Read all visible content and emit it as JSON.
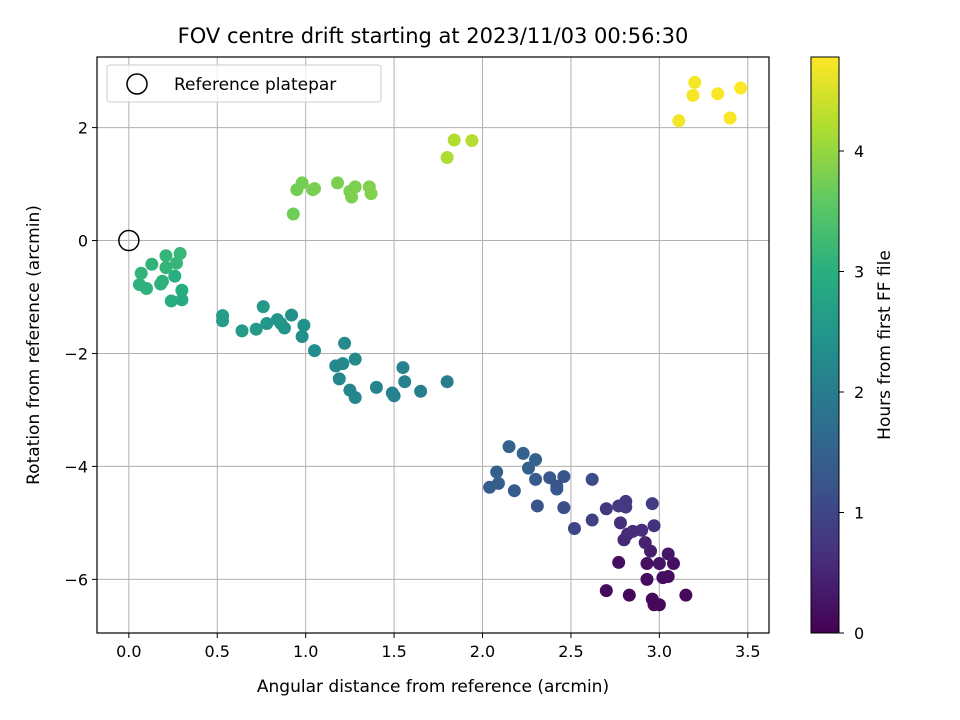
{
  "chart_data": {
    "type": "scatter",
    "title": "FOV centre drift starting at 2023/11/03 00:56:30",
    "xlabel": "Angular distance from reference (arcmin)",
    "ylabel": "Rotation from reference (arcmin)",
    "xlim": [
      -0.18,
      3.62
    ],
    "ylim": [
      -6.95,
      3.25
    ],
    "xticks": [
      0.0,
      0.5,
      1.0,
      1.5,
      2.0,
      2.5,
      3.0,
      3.5
    ],
    "xtick_labels": [
      "0.0",
      "0.5",
      "1.0",
      "1.5",
      "2.0",
      "2.5",
      "3.0",
      "3.5"
    ],
    "yticks": [
      -6,
      -4,
      -2,
      0,
      2
    ],
    "ytick_labels": [
      "−6",
      "−4",
      "−2",
      "0",
      "2"
    ],
    "grid": true,
    "legend": {
      "placement": "top-left",
      "entries": [
        "Reference platepar"
      ]
    },
    "reference_point": {
      "x": 0.0,
      "y": 0.0
    },
    "colorbar": {
      "label": "Hours from first FF file",
      "colormap": "viridis",
      "range": [
        0,
        4.78
      ],
      "ticks": [
        0,
        1,
        2,
        3,
        4
      ],
      "tick_labels": [
        "0",
        "1",
        "2",
        "3",
        "4"
      ]
    },
    "points": [
      {
        "x": 2.7,
        "y": -6.2,
        "c": 0.15
      },
      {
        "x": 2.83,
        "y": -6.28,
        "c": 0.12
      },
      {
        "x": 2.96,
        "y": -6.35,
        "c": 0.12
      },
      {
        "x": 2.97,
        "y": -6.45,
        "c": 0.1
      },
      {
        "x": 3.0,
        "y": -6.45,
        "c": 0.1
      },
      {
        "x": 3.15,
        "y": -6.28,
        "c": 0.12
      },
      {
        "x": 2.77,
        "y": -5.7,
        "c": 0.2
      },
      {
        "x": 2.93,
        "y": -5.72,
        "c": 0.2
      },
      {
        "x": 3.08,
        "y": -5.72,
        "c": 0.2
      },
      {
        "x": 3.02,
        "y": -5.97,
        "c": 0.18
      },
      {
        "x": 3.05,
        "y": -5.95,
        "c": 0.18
      },
      {
        "x": 2.93,
        "y": -6.0,
        "c": 0.18
      },
      {
        "x": 3.0,
        "y": -5.72,
        "c": 0.25
      },
      {
        "x": 3.05,
        "y": -5.55,
        "c": 0.3
      },
      {
        "x": 2.95,
        "y": -5.5,
        "c": 0.4
      },
      {
        "x": 2.92,
        "y": -5.35,
        "c": 0.45
      },
      {
        "x": 2.8,
        "y": -5.3,
        "c": 0.5
      },
      {
        "x": 2.82,
        "y": -5.2,
        "c": 0.55
      },
      {
        "x": 2.85,
        "y": -5.15,
        "c": 0.58
      },
      {
        "x": 2.9,
        "y": -5.13,
        "c": 0.6
      },
      {
        "x": 2.78,
        "y": -5.0,
        "c": 0.65
      },
      {
        "x": 2.97,
        "y": -5.05,
        "c": 0.68
      },
      {
        "x": 2.7,
        "y": -4.75,
        "c": 0.75
      },
      {
        "x": 2.77,
        "y": -4.7,
        "c": 0.8
      },
      {
        "x": 2.81,
        "y": -4.62,
        "c": 0.82
      },
      {
        "x": 2.81,
        "y": -4.72,
        "c": 0.82
      },
      {
        "x": 2.96,
        "y": -4.66,
        "c": 0.85
      },
      {
        "x": 2.62,
        "y": -4.95,
        "c": 0.9
      },
      {
        "x": 2.52,
        "y": -5.1,
        "c": 1.0
      },
      {
        "x": 2.62,
        "y": -4.23,
        "c": 1.1
      },
      {
        "x": 2.46,
        "y": -4.73,
        "c": 1.15
      },
      {
        "x": 2.31,
        "y": -4.7,
        "c": 1.2
      },
      {
        "x": 2.42,
        "y": -4.35,
        "c": 1.25
      },
      {
        "x": 2.46,
        "y": -4.18,
        "c": 1.25
      },
      {
        "x": 2.38,
        "y": -4.2,
        "c": 1.28
      },
      {
        "x": 2.42,
        "y": -4.4,
        "c": 1.3
      },
      {
        "x": 2.3,
        "y": -4.23,
        "c": 1.35
      },
      {
        "x": 2.18,
        "y": -4.43,
        "c": 1.35
      },
      {
        "x": 2.09,
        "y": -4.3,
        "c": 1.4
      },
      {
        "x": 2.04,
        "y": -4.37,
        "c": 1.42
      },
      {
        "x": 2.08,
        "y": -4.1,
        "c": 1.45
      },
      {
        "x": 2.26,
        "y": -4.03,
        "c": 1.48
      },
      {
        "x": 2.3,
        "y": -3.88,
        "c": 1.5
      },
      {
        "x": 2.23,
        "y": -3.77,
        "c": 1.5
      },
      {
        "x": 2.15,
        "y": -3.65,
        "c": 1.52
      },
      {
        "x": 1.8,
        "y": -2.5,
        "c": 2.0
      },
      {
        "x": 1.65,
        "y": -2.67,
        "c": 2.05
      },
      {
        "x": 1.56,
        "y": -2.5,
        "c": 2.1
      },
      {
        "x": 1.55,
        "y": -2.25,
        "c": 2.1
      },
      {
        "x": 1.49,
        "y": -2.7,
        "c": 2.12
      },
      {
        "x": 1.5,
        "y": -2.75,
        "c": 2.12
      },
      {
        "x": 1.4,
        "y": -2.6,
        "c": 2.15
      },
      {
        "x": 1.28,
        "y": -2.78,
        "c": 2.18
      },
      {
        "x": 1.25,
        "y": -2.65,
        "c": 2.18
      },
      {
        "x": 1.19,
        "y": -2.45,
        "c": 2.2
      },
      {
        "x": 1.17,
        "y": -2.22,
        "c": 2.22
      },
      {
        "x": 1.21,
        "y": -2.18,
        "c": 2.22
      },
      {
        "x": 1.28,
        "y": -2.1,
        "c": 2.25
      },
      {
        "x": 1.22,
        "y": -1.82,
        "c": 2.25
      },
      {
        "x": 1.05,
        "y": -1.95,
        "c": 2.3
      },
      {
        "x": 0.98,
        "y": -1.7,
        "c": 2.35
      },
      {
        "x": 0.99,
        "y": -1.5,
        "c": 2.4
      },
      {
        "x": 0.92,
        "y": -1.32,
        "c": 2.42
      },
      {
        "x": 0.88,
        "y": -1.55,
        "c": 2.45
      },
      {
        "x": 0.86,
        "y": -1.47,
        "c": 2.48
      },
      {
        "x": 0.84,
        "y": -1.4,
        "c": 2.5
      },
      {
        "x": 0.78,
        "y": -1.47,
        "c": 2.52
      },
      {
        "x": 0.76,
        "y": -1.17,
        "c": 2.55
      },
      {
        "x": 0.72,
        "y": -1.57,
        "c": 2.58
      },
      {
        "x": 0.64,
        "y": -1.6,
        "c": 2.6
      },
      {
        "x": 0.53,
        "y": -1.33,
        "c": 2.65
      },
      {
        "x": 0.53,
        "y": -1.42,
        "c": 2.65
      },
      {
        "x": 0.3,
        "y": -1.05,
        "c": 2.9
      },
      {
        "x": 0.3,
        "y": -0.88,
        "c": 2.95
      },
      {
        "x": 0.24,
        "y": -1.07,
        "c": 2.95
      },
      {
        "x": 0.26,
        "y": -0.63,
        "c": 3.0
      },
      {
        "x": 0.19,
        "y": -0.72,
        "c": 3.05
      },
      {
        "x": 0.18,
        "y": -0.77,
        "c": 3.05
      },
      {
        "x": 0.1,
        "y": -0.85,
        "c": 3.05
      },
      {
        "x": 0.06,
        "y": -0.78,
        "c": 3.05
      },
      {
        "x": 0.07,
        "y": -0.58,
        "c": 3.1
      },
      {
        "x": 0.13,
        "y": -0.42,
        "c": 3.1
      },
      {
        "x": 0.21,
        "y": -0.48,
        "c": 3.12
      },
      {
        "x": 0.27,
        "y": -0.4,
        "c": 3.15
      },
      {
        "x": 0.21,
        "y": -0.27,
        "c": 3.15
      },
      {
        "x": 0.29,
        "y": -0.23,
        "c": 3.18
      },
      {
        "x": 0.93,
        "y": 0.47,
        "c": 3.7
      },
      {
        "x": 0.95,
        "y": 0.9,
        "c": 3.75
      },
      {
        "x": 0.98,
        "y": 1.02,
        "c": 3.75
      },
      {
        "x": 1.04,
        "y": 0.9,
        "c": 3.78
      },
      {
        "x": 1.05,
        "y": 0.92,
        "c": 3.78
      },
      {
        "x": 1.18,
        "y": 1.02,
        "c": 3.8
      },
      {
        "x": 1.25,
        "y": 0.87,
        "c": 3.8
      },
      {
        "x": 1.26,
        "y": 0.77,
        "c": 3.82
      },
      {
        "x": 1.28,
        "y": 0.95,
        "c": 3.82
      },
      {
        "x": 1.36,
        "y": 0.95,
        "c": 3.85
      },
      {
        "x": 1.37,
        "y": 0.83,
        "c": 3.85
      },
      {
        "x": 1.8,
        "y": 1.47,
        "c": 4.2
      },
      {
        "x": 1.84,
        "y": 1.78,
        "c": 4.22
      },
      {
        "x": 1.94,
        "y": 1.77,
        "c": 4.25
      },
      {
        "x": 3.11,
        "y": 2.12,
        "c": 4.7
      },
      {
        "x": 3.19,
        "y": 2.57,
        "c": 4.72
      },
      {
        "x": 3.2,
        "y": 2.8,
        "c": 4.72
      },
      {
        "x": 3.33,
        "y": 2.6,
        "c": 4.75
      },
      {
        "x": 3.4,
        "y": 2.17,
        "c": 4.75
      },
      {
        "x": 3.46,
        "y": 2.7,
        "c": 4.78
      }
    ]
  }
}
